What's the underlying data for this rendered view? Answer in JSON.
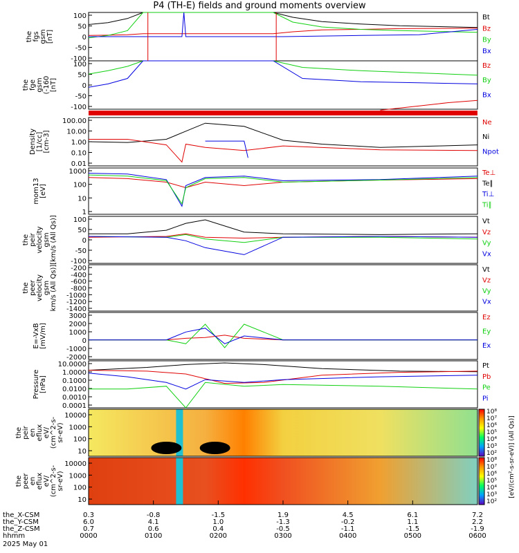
{
  "title": "P4 (TH-E) fields and ground moments overview",
  "colors": {
    "black": "#000000",
    "red": "#e00000",
    "green": "#10d010",
    "blue": "#0000e0"
  },
  "chart_data": [
    {
      "type": "line",
      "id": "fgs",
      "ylabel": [
        "the",
        "fgs",
        "gsm",
        "[nT]"
      ],
      "ylim": [
        -100,
        100
      ],
      "ticks": [
        "100",
        "50",
        "0",
        "-50",
        "-100"
      ],
      "legend": [
        {
          "name": "Bt",
          "color": "black"
        },
        {
          "name": "Bz",
          "color": "red"
        },
        {
          "name": "By",
          "color": "green"
        },
        {
          "name": "Bx",
          "color": "blue"
        }
      ],
      "series": [
        {
          "name": "Bt",
          "color": "black",
          "x": [
            0.0,
            0.1,
            0.2,
            0.28,
            0.95,
            1.05,
            1.2,
            1.4,
            1.6,
            2.0
          ],
          "y": [
            50,
            58,
            75,
            100,
            100,
            80,
            62,
            52,
            45,
            38
          ]
        },
        {
          "name": "Bz",
          "color": "red",
          "x": [
            0.0,
            0.1,
            0.2,
            0.28,
            0.95,
            1.05,
            1.2,
            1.4,
            1.6,
            2.0
          ],
          "y": [
            5,
            6,
            8,
            12,
            12,
            20,
            28,
            30,
            33,
            35
          ]
        },
        {
          "name": "By",
          "color": "green",
          "x": [
            0.0,
            0.1,
            0.2,
            0.28,
            0.95,
            1.05,
            1.2,
            1.4,
            1.6,
            2.0
          ],
          "y": [
            -5,
            5,
            25,
            100,
            100,
            60,
            40,
            30,
            25,
            18
          ]
        },
        {
          "name": "Bx",
          "color": "blue",
          "x": [
            0.0,
            0.2,
            0.48,
            0.49,
            0.5,
            1.0,
            1.4,
            1.7,
            2.0
          ],
          "y": [
            0,
            0,
            0,
            100,
            0,
            0,
            5,
            8,
            30
          ]
        }
      ]
    },
    {
      "type": "line",
      "id": "fge",
      "ylabel": [
        "the",
        "fge",
        "gsm",
        "(-160",
        "[nT]"
      ],
      "ylim": [
        -120,
        100
      ],
      "ticks": [
        "100",
        "50",
        "0",
        "-50",
        "-100"
      ],
      "legend": [
        {
          "name": "Bz",
          "color": "red"
        },
        {
          "name": "By",
          "color": "green"
        },
        {
          "name": "Bx",
          "color": "blue"
        }
      ],
      "series": [
        {
          "name": "By",
          "color": "green",
          "x": [
            0.0,
            0.1,
            0.2,
            0.28,
            0.95,
            1.1,
            1.4,
            1.7,
            2.0
          ],
          "y": [
            40,
            55,
            75,
            100,
            100,
            70,
            55,
            45,
            35
          ]
        },
        {
          "name": "Bx",
          "color": "blue",
          "x": [
            0.0,
            0.1,
            0.2,
            0.28,
            0.95,
            1.1,
            1.4,
            1.7,
            2.0
          ],
          "y": [
            -20,
            -5,
            20,
            100,
            100,
            20,
            5,
            0,
            -5
          ]
        },
        {
          "name": "Bz",
          "color": "red",
          "x": [
            1.5,
            1.7,
            1.85,
            2.0
          ],
          "y": [
            -130,
            -105,
            -90,
            -80
          ]
        }
      ]
    },
    {
      "type": "line",
      "id": "density",
      "ylabel": [
        "Density",
        "[1/cc]",
        "[cm-3]"
      ],
      "ylim": [
        0.001,
        1000
      ],
      "log": true,
      "ticks": [
        "100.00",
        "10.00",
        "1.00",
        "0.10",
        "0.01"
      ],
      "legend": [
        {
          "name": "Ne",
          "color": "red"
        },
        {
          "name": "Ni",
          "color": "black"
        },
        {
          "name": "Npot",
          "color": "blue"
        }
      ],
      "series": [
        {
          "name": "Ni",
          "color": "black",
          "x": [
            0.0,
            0.2,
            0.4,
            0.5,
            0.6,
            0.8,
            1.0,
            1.2,
            1.5,
            1.8,
            2.0
          ],
          "y": [
            1,
            0.8,
            2,
            20,
            200,
            80,
            1.5,
            0.5,
            0.2,
            0.3,
            0.4
          ]
        },
        {
          "name": "Ne",
          "color": "red",
          "x": [
            0.0,
            0.2,
            0.4,
            0.48,
            0.5,
            0.6,
            0.8,
            1.0,
            1.5,
            2.0
          ],
          "y": [
            2,
            2,
            0.4,
            0.003,
            0.5,
            0.2,
            0.08,
            0.3,
            0.1,
            0.08
          ]
        },
        {
          "name": "Npot",
          "color": "blue",
          "x": [
            0.6,
            0.7,
            0.8,
            0.82
          ],
          "y": [
            1.2,
            1.2,
            1.2,
            0.01
          ]
        }
      ]
    },
    {
      "type": "line",
      "id": "temp",
      "ylabel": [
        "mom13",
        "[eV]"
      ],
      "ylim": [
        1,
        10000
      ],
      "log": true,
      "ticks": [
        "1000",
        "100",
        "10",
        "1"
      ],
      "legend": [
        {
          "name": "Te⊥",
          "color": "red"
        },
        {
          "name": "Te∥",
          "color": "black"
        },
        {
          "name": "Ti⊥",
          "color": "blue"
        },
        {
          "name": "Ti∥",
          "color": "green"
        }
      ],
      "series": [
        {
          "name": "Te⊥",
          "color": "red",
          "x": [
            0.0,
            0.2,
            0.4,
            0.5,
            0.6,
            0.8,
            1.0,
            1.5,
            2.0
          ],
          "y": [
            1500,
            1200,
            600,
            200,
            600,
            300,
            600,
            900,
            1200
          ]
        },
        {
          "name": "Ti⊥",
          "color": "blue",
          "x": [
            0.0,
            0.2,
            0.4,
            0.48,
            0.5,
            0.6,
            0.8,
            1.0,
            1.5,
            2.0
          ],
          "y": [
            3500,
            3000,
            1000,
            5,
            300,
            1500,
            2000,
            800,
            1000,
            2000
          ]
        },
        {
          "name": "Ti∥",
          "color": "green",
          "x": [
            0.0,
            0.2,
            0.4,
            0.48,
            0.5,
            0.6,
            0.8,
            1.0,
            1.5,
            2.0
          ],
          "y": [
            2500,
            2000,
            800,
            8,
            200,
            1200,
            1500,
            600,
            900,
            1500
          ]
        }
      ]
    },
    {
      "type": "line",
      "id": "peir",
      "ylabel": [
        "the",
        "peir",
        "velocity",
        "gsm",
        "[km/s (All Qs)]"
      ],
      "ylim": [
        -150,
        120
      ],
      "ticks": [
        "100",
        "50",
        "0",
        "-50",
        "-100"
      ],
      "legend": [
        {
          "name": "Vt",
          "color": "black"
        },
        {
          "name": "Vz",
          "color": "red"
        },
        {
          "name": "Vy",
          "color": "green"
        },
        {
          "name": "Vx",
          "color": "blue"
        }
      ],
      "series": [
        {
          "name": "Vt",
          "color": "black",
          "x": [
            0.0,
            0.2,
            0.4,
            0.5,
            0.6,
            0.8,
            1.0,
            1.5,
            2.0
          ],
          "y": [
            20,
            20,
            40,
            80,
            100,
            30,
            20,
            15,
            20
          ]
        },
        {
          "name": "Vz",
          "color": "red",
          "x": [
            0.0,
            0.4,
            0.5,
            0.6,
            0.8,
            1.0,
            1.5,
            2.0
          ],
          "y": [
            0,
            5,
            20,
            0,
            -5,
            0,
            5,
            0
          ]
        },
        {
          "name": "Vy",
          "color": "green",
          "x": [
            0.0,
            0.4,
            0.5,
            0.6,
            0.8,
            1.0,
            1.5,
            2.0
          ],
          "y": [
            5,
            0,
            15,
            -10,
            -30,
            0,
            0,
            -10
          ]
        },
        {
          "name": "Vx",
          "color": "blue",
          "x": [
            0.0,
            0.4,
            0.5,
            0.6,
            0.8,
            1.0,
            1.5,
            2.0
          ],
          "y": [
            5,
            0,
            -20,
            -60,
            -100,
            0,
            5,
            0
          ]
        }
      ]
    },
    {
      "type": "line",
      "id": "peer",
      "ylabel": [
        "the",
        "peer",
        "velocity",
        "gsm",
        "km/s (All Qs)]"
      ],
      "ylim": [
        -1400,
        -200
      ],
      "ticks": [
        "-200",
        "-400",
        "-600",
        "-800",
        "-1000",
        "-1200",
        "-1400"
      ],
      "legend": [
        {
          "name": "Vt",
          "color": "black"
        },
        {
          "name": "Vz",
          "color": "red"
        },
        {
          "name": "Vy",
          "color": "green"
        },
        {
          "name": "Vx",
          "color": "blue"
        }
      ],
      "series": []
    },
    {
      "type": "line",
      "id": "efield",
      "ylabel": [
        "E=-VxB",
        "[mV/m]"
      ],
      "ylim": [
        -2500,
        3500
      ],
      "ticks": [
        "3000",
        "2000",
        "1000",
        "0",
        "-1000",
        "-2000"
      ],
      "legend": [
        {
          "name": "Ez",
          "color": "red"
        },
        {
          "name": "Ey",
          "color": "green"
        },
        {
          "name": "Ex",
          "color": "blue"
        }
      ],
      "series": [
        {
          "name": "Ez",
          "color": "red",
          "x": [
            0.0,
            0.4,
            0.5,
            0.6,
            0.7,
            0.8,
            1.0,
            2.0
          ],
          "y": [
            0,
            0,
            200,
            300,
            600,
            200,
            0,
            0
          ]
        },
        {
          "name": "Ey",
          "color": "green",
          "x": [
            0.0,
            0.4,
            0.5,
            0.6,
            0.7,
            0.8,
            1.0,
            2.0
          ],
          "y": [
            0,
            0,
            -500,
            2000,
            -1000,
            2000,
            0,
            0
          ]
        },
        {
          "name": "Ex",
          "color": "blue",
          "x": [
            0.0,
            0.4,
            0.5,
            0.6,
            0.7,
            0.8,
            1.0,
            2.0
          ],
          "y": [
            0,
            0,
            1000,
            1500,
            -500,
            500,
            0,
            0
          ]
        }
      ]
    },
    {
      "type": "line",
      "id": "pressure",
      "ylabel": [
        "Pressure",
        "[nPa]"
      ],
      "ylim": [
        0.0001,
        10
      ],
      "log": true,
      "ticks": [
        "10.0000",
        "1.0000",
        "0.1000",
        "0.0100",
        "0.0010",
        "0.0001"
      ],
      "legend": [
        {
          "name": "Pt",
          "color": "black"
        },
        {
          "name": "Pb",
          "color": "red"
        },
        {
          "name": "Pe",
          "color": "green"
        },
        {
          "name": "Pi",
          "color": "blue"
        }
      ],
      "series": [
        {
          "name": "Pt",
          "color": "black",
          "x": [
            0.0,
            0.3,
            0.5,
            0.7,
            0.9,
            1.2,
            1.6,
            2.0
          ],
          "y": [
            1,
            2,
            4,
            6,
            4,
            1.5,
            0.8,
            0.7
          ]
        },
        {
          "name": "Pb",
          "color": "red",
          "x": [
            0.0,
            0.3,
            0.5,
            0.7,
            0.9,
            1.2,
            1.6,
            2.0
          ],
          "y": [
            1,
            0.8,
            0.4,
            0.04,
            0.05,
            0.3,
            0.6,
            0.8
          ]
        },
        {
          "name": "Pe",
          "color": "green",
          "x": [
            0.0,
            0.2,
            0.4,
            0.5,
            0.6,
            0.8,
            1.0,
            1.5,
            2.0
          ],
          "y": [
            0.01,
            0.01,
            0.02,
            0.0001,
            0.05,
            0.02,
            0.03,
            0.02,
            0.01
          ]
        },
        {
          "name": "Pi",
          "color": "blue",
          "x": [
            0.0,
            0.2,
            0.4,
            0.5,
            0.6,
            0.8,
            1.0,
            1.5,
            2.0
          ],
          "y": [
            0.5,
            0.2,
            0.05,
            0.01,
            0.1,
            0.05,
            0.1,
            0.2,
            0.3
          ]
        }
      ]
    },
    {
      "type": "heatmap",
      "id": "peir-eflux",
      "ylabel": [
        "the",
        "peir",
        "en",
        "eflux",
        "eV/",
        "(cm^2-s-",
        "sr-eV)"
      ],
      "ylim": [
        10,
        10000
      ],
      "ticks": [
        "10000",
        "1000",
        "100",
        "10"
      ]
    },
    {
      "type": "heatmap",
      "id": "peer-eflux",
      "ylabel": [
        "the",
        "peer",
        "en",
        "eflux",
        "eV/",
        "(cm^2-s-",
        "sr-eV)"
      ],
      "ylim": [
        10,
        10000
      ],
      "ticks": [
        "10000",
        "1000",
        "100",
        "10"
      ]
    }
  ],
  "colorbar": {
    "ticks": [
      "10⁸",
      "10⁷",
      "10⁶",
      "10⁵",
      "10⁴",
      "10³",
      "10²"
    ],
    "ticks2": [
      "10⁸",
      "10⁷",
      "10⁶",
      "10⁵",
      "10⁴",
      "10³",
      "10²"
    ],
    "label": "[eV/(cm²-s-sr-eV)] (All Qs)]"
  },
  "xaxis": {
    "rows": [
      {
        "label": "the_X-CSM",
        "values": [
          "0.3",
          "-0.8",
          "-1.5",
          "1.9",
          "4.5",
          "6.1",
          "7.2"
        ]
      },
      {
        "label": "the_Y-CSM",
        "values": [
          "6.0",
          "4.1",
          "1.0",
          "-1.3",
          "-0.2",
          "1.1",
          "2.2"
        ]
      },
      {
        "label": "the_Z-CSM",
        "values": [
          "0.7",
          "0.6",
          "0.4",
          "-0.5",
          "-1.1",
          "-1.5",
          "-1.9"
        ]
      },
      {
        "label": "hhmm",
        "values": [
          "0000",
          "0100",
          "0200",
          "0300",
          "0400",
          "0500",
          "0600"
        ]
      }
    ],
    "date": "2025 May 01"
  }
}
